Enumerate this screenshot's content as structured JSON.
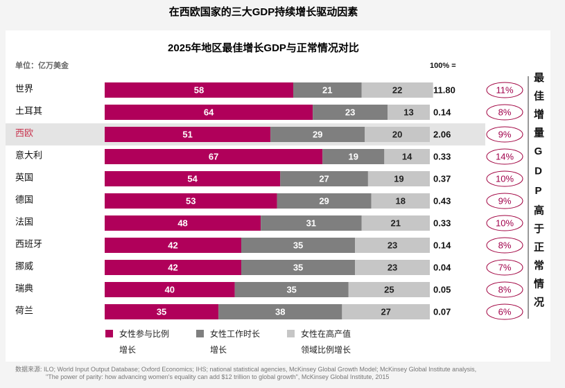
{
  "chart_data": {
    "type": "bar",
    "orientation": "horizontal",
    "stacked": true,
    "page_title": "在西欧国家的三大GDP持续增长驱动因素",
    "title": "2025年地区最佳增长GDP与正常情况对比",
    "unit_label": "单位：亿万美金",
    "categories": [
      "世界",
      "土耳其",
      "西欧",
      "意大利",
      "英国",
      "德国",
      "法国",
      "西班牙",
      "挪威",
      "瑞典",
      "荷兰"
    ],
    "highlight": 2,
    "xlim": [
      0,
      100
    ],
    "series": [
      {
        "name": "女性参与比例增长",
        "color": "#b0005a",
        "label_color": "#ffffff",
        "values": [
          58,
          64,
          51,
          67,
          54,
          53,
          48,
          42,
          42,
          40,
          35
        ]
      },
      {
        "name": "女性工作时长增长",
        "color": "#7f7f7f",
        "label_color": "#ffffff",
        "values": [
          21,
          23,
          29,
          19,
          27,
          29,
          31,
          35,
          35,
          35,
          38
        ]
      },
      {
        "name": "女性在高产值领域比例增长",
        "color": "#c6c6c6",
        "label_color": "#222222",
        "values": [
          22,
          13,
          20,
          14,
          19,
          18,
          21,
          23,
          23,
          25,
          27
        ]
      }
    ],
    "totals": {
      "header": "100% =",
      "values": [
        11.8,
        0.14,
        2.06,
        0.33,
        0.37,
        0.43,
        0.33,
        0.14,
        0.04,
        0.05,
        0.07
      ],
      "value_labels": [
        "11.80",
        "0.14",
        "2.06",
        "0.33",
        "0.37",
        "0.43",
        "0.33",
        "0.14",
        "0.04",
        "0.05",
        "0.07"
      ]
    },
    "best_growth": {
      "label": "最佳增量GDP高于正常情况",
      "values": [
        11,
        8,
        9,
        14,
        10,
        9,
        10,
        8,
        7,
        8,
        6
      ],
      "value_labels": [
        "11%",
        "8%",
        "9%",
        "14%",
        "10%",
        "9%",
        "10%",
        "8%",
        "7%",
        "8%",
        "6%"
      ]
    },
    "source": [
      "数据来源: ILO; World Input Output Database; Oxford Economics; IHS; national statistical agencies, McKinsey Global Growth Model; McKinsey Global Institute analysis,",
      "\"The power of parity: how advancing women's equality can add $12 trillion to global growth\", McKinsey Global Institute, 2015"
    ]
  }
}
